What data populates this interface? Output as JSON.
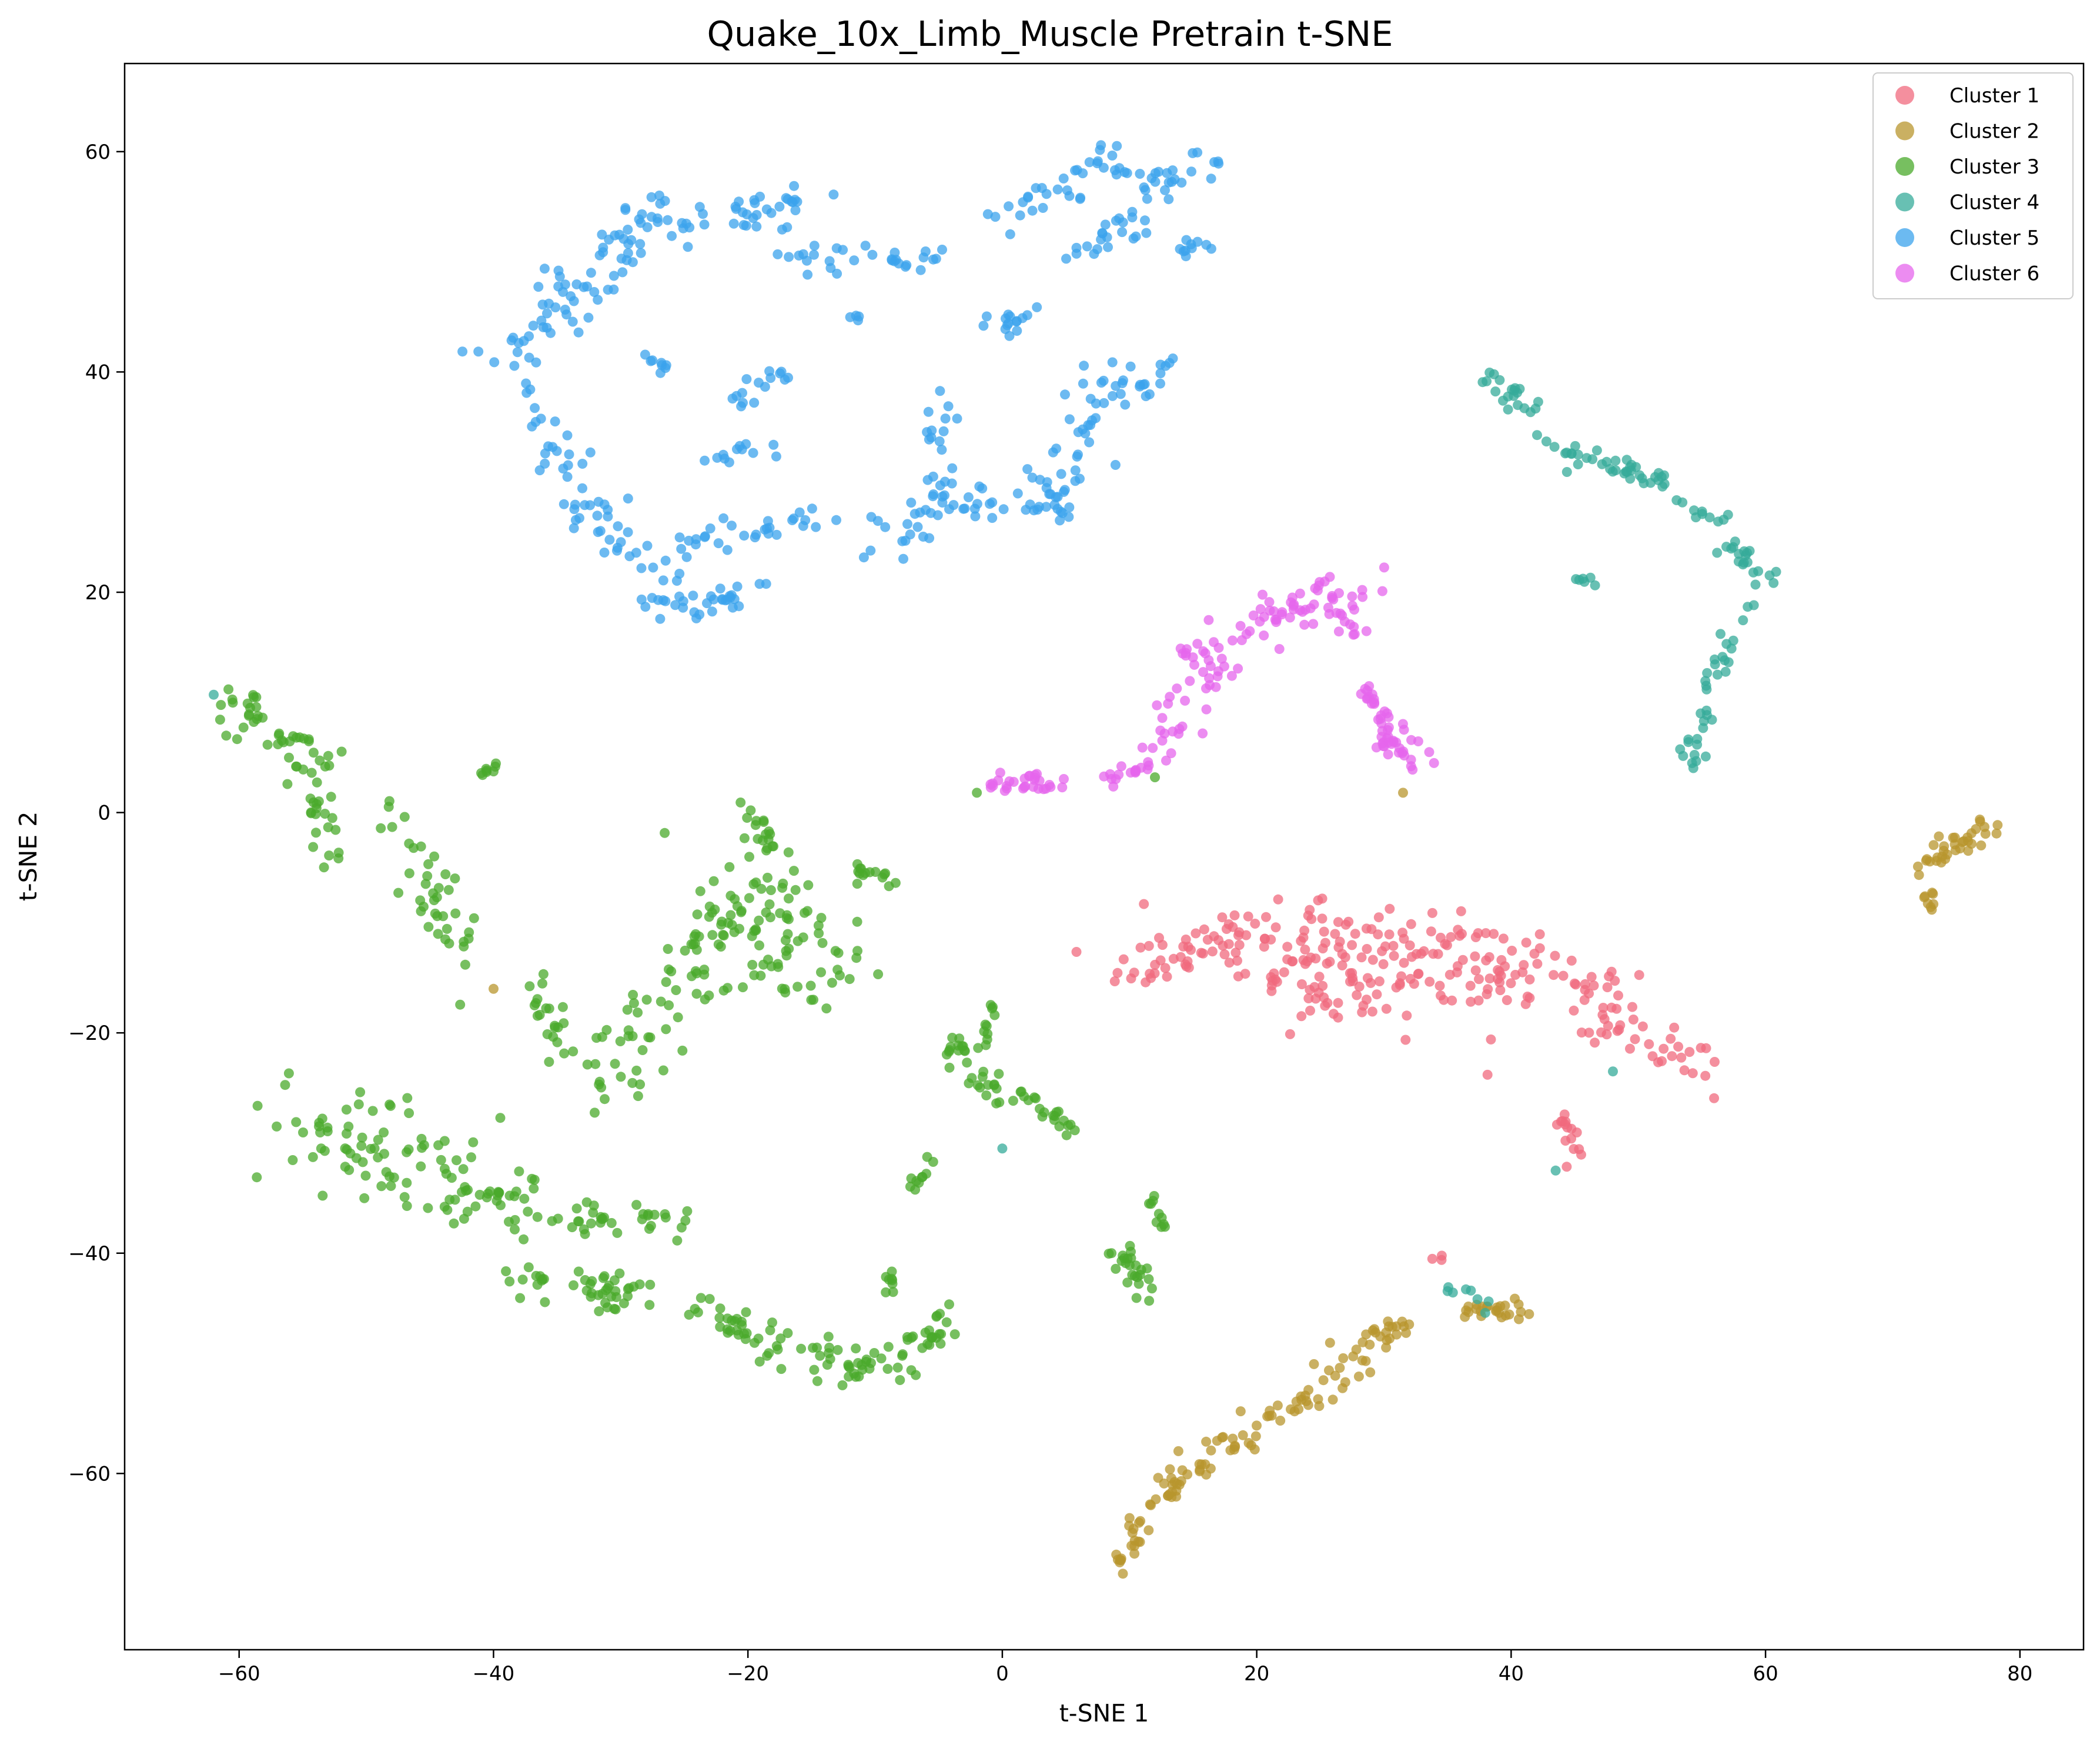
{
  "chart_data": {
    "type": "scatter",
    "title": "Quake_10x_Limb_Muscle Pretrain t-SNE",
    "xlabel": "t-SNE 1",
    "ylabel": "t-SNE 2",
    "xlim": [
      -69,
      85
    ],
    "ylim": [
      -76,
      68
    ],
    "xticks": [
      -60,
      -40,
      -20,
      0,
      20,
      40,
      60,
      80
    ],
    "yticks": [
      -60,
      -40,
      -20,
      0,
      20,
      40,
      60
    ],
    "xtick_labels": [
      "−60",
      "−40",
      "−20",
      "0",
      "20",
      "40",
      "60",
      "80"
    ],
    "ytick_labels": [
      "−60",
      "−40",
      "−20",
      "0",
      "20",
      "40",
      "60"
    ],
    "grid": false,
    "legend_position": "top-right",
    "series": [
      {
        "name": "Cluster 1",
        "color": "#f0697d",
        "segments": [
          {
            "x": 10,
            "y": -14,
            "x2": 22,
            "y2": -11,
            "n": 60,
            "s": 1.6
          },
          {
            "x": 22,
            "y": -11,
            "x2": 34,
            "y2": -13,
            "n": 80,
            "s": 2.2
          },
          {
            "x": 34,
            "y": -13,
            "x2": 46,
            "y2": -17,
            "n": 70,
            "s": 2.0
          },
          {
            "x": 46,
            "y": -17,
            "x2": 55,
            "y2": -23,
            "n": 40,
            "s": 1.3
          },
          {
            "x": 20,
            "y": -14,
            "x2": 30,
            "y2": -19,
            "n": 40,
            "s": 1.5
          },
          {
            "x": 44,
            "y": -27,
            "x2": 45,
            "y2": -31,
            "n": 15,
            "s": 0.4
          },
          {
            "x": 34,
            "y": -40.5,
            "x2": 35,
            "y2": -40.5,
            "n": 3,
            "s": 0.3
          }
        ]
      },
      {
        "name": "Cluster 2",
        "color": "#b8952e",
        "segments": [
          {
            "x": 9.5,
            "y": -69,
            "x2": 10.5,
            "y2": -64,
            "n": 20,
            "s": 0.5
          },
          {
            "x": 11,
            "y": -63,
            "x2": 20,
            "y2": -56,
            "n": 45,
            "s": 0.8
          },
          {
            "x": 20,
            "y": -56,
            "x2": 32,
            "y2": -46,
            "n": 55,
            "s": 0.9
          },
          {
            "x": 36,
            "y": -45.5,
            "x2": 41,
            "y2": -45,
            "n": 25,
            "s": 0.5
          },
          {
            "x": 72,
            "y": -5,
            "x2": 78,
            "y2": -1,
            "n": 35,
            "s": 0.6
          },
          {
            "x": 73,
            "y": -7,
            "x2": 73,
            "y2": -9,
            "n": 8,
            "s": 0.3
          },
          {
            "x": -40,
            "y": -16,
            "x2": -40,
            "y2": -16,
            "n": 1,
            "s": 0
          },
          {
            "x": 31.5,
            "y": 1.8,
            "x2": 31.5,
            "y2": 1.8,
            "n": 1,
            "s": 0
          }
        ]
      },
      {
        "name": "Cluster 3",
        "color": "#4aaa2b",
        "segments": [
          {
            "x": -61,
            "y": 10,
            "x2": -53,
            "y2": 4,
            "n": 45,
            "s": 0.9
          },
          {
            "x": -54,
            "y": 2,
            "x2": -53,
            "y2": -5,
            "n": 20,
            "s": 0.7
          },
          {
            "x": -48,
            "y": 0,
            "x2": -42,
            "y2": -14,
            "n": 40,
            "s": 1.2
          },
          {
            "x": -41,
            "y": 3.5,
            "x2": -39.5,
            "y2": 4.2,
            "n": 8,
            "s": 0.2
          },
          {
            "x": -37,
            "y": -16,
            "x2": -34,
            "y2": -22,
            "n": 20,
            "s": 0.8
          },
          {
            "x": -32,
            "y": -26,
            "x2": -22,
            "y2": -10,
            "n": 60,
            "s": 1.8
          },
          {
            "x": -22,
            "y": -8,
            "x2": -14,
            "y2": -13,
            "n": 90,
            "s": 2.8
          },
          {
            "x": -20,
            "y": 0,
            "x2": -18,
            "y2": -4,
            "n": 20,
            "s": 0.8
          },
          {
            "x": -12,
            "y": -5,
            "x2": -9,
            "y2": -6,
            "n": 15,
            "s": 0.5
          },
          {
            "x": -55,
            "y": -28,
            "x2": -44,
            "y2": -33,
            "n": 70,
            "s": 2.6
          },
          {
            "x": -44,
            "y": -33,
            "x2": -35,
            "y2": -37,
            "n": 40,
            "s": 2.0
          },
          {
            "x": -38,
            "y": -42,
            "x2": -28,
            "y2": -44,
            "n": 45,
            "s": 0.9
          },
          {
            "x": -34,
            "y": -37,
            "x2": -25,
            "y2": -37,
            "n": 30,
            "s": 0.9
          },
          {
            "x": -24,
            "y": -45,
            "x2": -16,
            "y2": -49,
            "n": 35,
            "s": 0.9
          },
          {
            "x": -16,
            "y": -49,
            "x2": -9,
            "y2": -51,
            "n": 30,
            "s": 0.9
          },
          {
            "x": -9,
            "y": -50,
            "x2": -4,
            "y2": -47,
            "n": 30,
            "s": 0.9
          },
          {
            "x": -9,
            "y": -42,
            "x2": -9,
            "y2": -44,
            "n": 8,
            "s": 0.3
          },
          {
            "x": -7,
            "y": -34,
            "x2": -5,
            "y2": -31,
            "n": 10,
            "s": 0.3
          },
          {
            "x": -4,
            "y": -21,
            "x2": 0,
            "y2": -26,
            "n": 30,
            "s": 0.7
          },
          {
            "x": -1,
            "y": -17,
            "x2": -1,
            "y2": -21,
            "n": 10,
            "s": 0.3
          },
          {
            "x": 1,
            "y": -25,
            "x2": 6,
            "y2": -29,
            "n": 20,
            "s": 0.5
          },
          {
            "x": 9,
            "y": -40,
            "x2": 11,
            "y2": -43,
            "n": 25,
            "s": 0.6
          },
          {
            "x": 11.5,
            "y": -34,
            "x2": 12.5,
            "y2": -38,
            "n": 10,
            "s": 0.3
          },
          {
            "x": 12,
            "y": 3.2,
            "x2": 12,
            "y2": 3.2,
            "n": 1,
            "s": 0
          },
          {
            "x": -2,
            "y": 1.8,
            "x2": -2,
            "y2": 1.8,
            "n": 1,
            "s": 0
          }
        ]
      },
      {
        "name": "Cluster 4",
        "color": "#36ab9a",
        "segments": [
          {
            "x": 38,
            "y": 40,
            "x2": 42,
            "y2": 36,
            "n": 20,
            "s": 0.6
          },
          {
            "x": 42,
            "y": 34,
            "x2": 52,
            "y2": 30,
            "n": 40,
            "s": 0.7
          },
          {
            "x": 53,
            "y": 28,
            "x2": 57,
            "y2": 26.5,
            "n": 10,
            "s": 0.3
          },
          {
            "x": 57,
            "y": 25,
            "x2": 60,
            "y2": 21,
            "n": 20,
            "s": 0.6
          },
          {
            "x": 58,
            "y": 19,
            "x2": 54,
            "y2": 4,
            "n": 35,
            "s": 0.5
          },
          {
            "x": 45,
            "y": 21.5,
            "x2": 47,
            "y2": 20.5,
            "n": 6,
            "s": 0.2
          },
          {
            "x": 35,
            "y": -43,
            "x2": 38,
            "y2": -45,
            "n": 8,
            "s": 0.3
          },
          {
            "x": 48,
            "y": -23.5,
            "x2": 48,
            "y2": -23.5,
            "n": 1,
            "s": 0
          },
          {
            "x": 43.5,
            "y": -32.5,
            "x2": 43.5,
            "y2": -32.5,
            "n": 1,
            "s": 0
          },
          {
            "x": 0,
            "y": -30.5,
            "x2": 0,
            "y2": -30.5,
            "n": 1,
            "s": 0
          },
          {
            "x": -62,
            "y": 10.7,
            "x2": -62,
            "y2": 10.7,
            "n": 1,
            "s": 0
          }
        ]
      },
      {
        "name": "Cluster 5",
        "color": "#3ba3ec",
        "segments": [
          {
            "x": -40,
            "y": 41,
            "x2": -33,
            "y2": 48,
            "n": 35,
            "s": 1.2
          },
          {
            "x": -33,
            "y": 48,
            "x2": -26,
            "y2": 56,
            "n": 35,
            "s": 1.0
          },
          {
            "x": -26,
            "y": 53,
            "x2": -15,
            "y2": 56,
            "n": 40,
            "s": 1.0
          },
          {
            "x": -19,
            "y": 50.5,
            "x2": -5,
            "y2": 50,
            "n": 30,
            "s": 0.7
          },
          {
            "x": -37,
            "y": 40,
            "x2": -34,
            "y2": 30,
            "n": 25,
            "s": 1.2
          },
          {
            "x": -33,
            "y": 28,
            "x2": -25,
            "y2": 19,
            "n": 40,
            "s": 1.3
          },
          {
            "x": -27,
            "y": 18.5,
            "x2": -19,
            "y2": 20,
            "n": 25,
            "s": 0.7
          },
          {
            "x": -25,
            "y": 24,
            "x2": -15,
            "y2": 27,
            "n": 30,
            "s": 0.8
          },
          {
            "x": -28,
            "y": 41.5,
            "x2": -26,
            "y2": 40,
            "n": 8,
            "s": 0.3
          },
          {
            "x": -23,
            "y": 32,
            "x2": -18,
            "y2": 33,
            "n": 12,
            "s": 0.5
          },
          {
            "x": -21,
            "y": 37,
            "x2": -17,
            "y2": 40,
            "n": 15,
            "s": 0.6
          },
          {
            "x": -10,
            "y": 24,
            "x2": -3,
            "y2": 30,
            "n": 35,
            "s": 1.4
          },
          {
            "x": -3,
            "y": 28,
            "x2": 5,
            "y2": 28,
            "n": 25,
            "s": 0.8
          },
          {
            "x": -6,
            "y": 32,
            "x2": -4,
            "y2": 38,
            "n": 12,
            "s": 0.6
          },
          {
            "x": 3,
            "y": 28,
            "x2": 10,
            "y2": 40,
            "n": 45,
            "s": 1.5
          },
          {
            "x": -1,
            "y": 44,
            "x2": 3,
            "y2": 45,
            "n": 15,
            "s": 0.6
          },
          {
            "x": 1,
            "y": 54,
            "x2": 9,
            "y2": 60,
            "n": 35,
            "s": 1.2
          },
          {
            "x": 6,
            "y": 50,
            "x2": 11,
            "y2": 55,
            "n": 20,
            "s": 0.8
          },
          {
            "x": 11,
            "y": 56,
            "x2": 17,
            "y2": 60,
            "n": 25,
            "s": 0.8
          },
          {
            "x": 14,
            "y": 50,
            "x2": 16,
            "y2": 52,
            "n": 10,
            "s": 0.5
          },
          {
            "x": 11,
            "y": 38,
            "x2": 14,
            "y2": 42,
            "n": 10,
            "s": 0.4
          },
          {
            "x": -12,
            "y": 45,
            "x2": -11,
            "y2": 44.5,
            "n": 4,
            "s": 0.2
          }
        ]
      },
      {
        "name": "Cluster 6",
        "color": "#e665ec",
        "segments": [
          {
            "x": -1,
            "y": 2.5,
            "x2": 4,
            "y2": 2.5,
            "n": 30,
            "s": 0.6
          },
          {
            "x": 8,
            "y": 3,
            "x2": 12,
            "y2": 4.5,
            "n": 15,
            "s": 0.4
          },
          {
            "x": 12,
            "y": 5,
            "x2": 19,
            "y2": 17,
            "n": 40,
            "s": 1.1
          },
          {
            "x": 19,
            "y": 17,
            "x2": 29,
            "y2": 21,
            "n": 45,
            "s": 1.1
          },
          {
            "x": 26,
            "y": 20,
            "x2": 28,
            "y2": 16,
            "n": 15,
            "s": 0.6
          },
          {
            "x": 28,
            "y": 12,
            "x2": 30,
            "y2": 8,
            "n": 20,
            "s": 0.6
          },
          {
            "x": 30,
            "y": 7,
            "x2": 33,
            "y2": 5,
            "n": 30,
            "s": 0.8
          },
          {
            "x": 14,
            "y": 14,
            "x2": 16,
            "y2": 15,
            "n": 10,
            "s": 0.5
          }
        ]
      }
    ]
  }
}
